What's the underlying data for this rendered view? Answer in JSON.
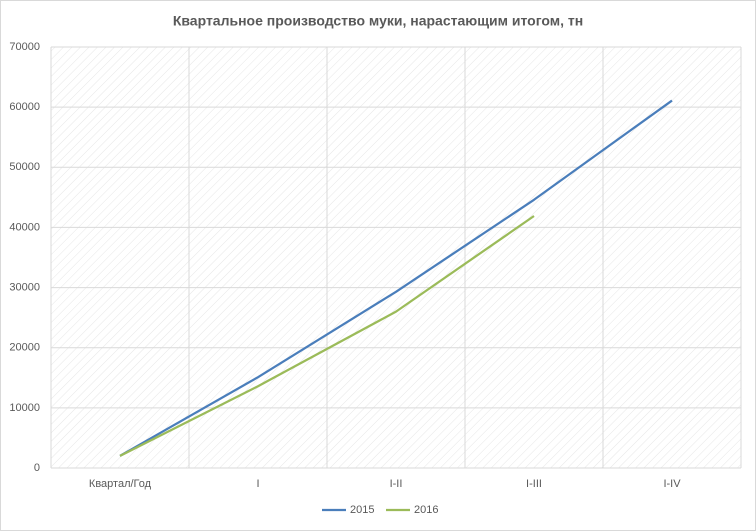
{
  "chart_data": {
    "type": "line",
    "title": "Квартальное производство муки, нарастающим итогом, тн",
    "categories": [
      "Квартал/Год",
      "I",
      "I-II",
      "I-III",
      "I-IV"
    ],
    "series": [
      {
        "name": "2015",
        "color": "#4a7ebb",
        "values": [
          2015,
          15100,
          29300,
          44600,
          61100
        ]
      },
      {
        "name": "2016",
        "color": "#9bbb59",
        "values": [
          2016,
          13600,
          26000,
          41900,
          null
        ]
      }
    ],
    "ylim": [
      0,
      70000
    ],
    "yticks": [
      0,
      10000,
      20000,
      30000,
      40000,
      50000,
      60000,
      70000
    ],
    "grid": true,
    "legend": "bottom"
  }
}
